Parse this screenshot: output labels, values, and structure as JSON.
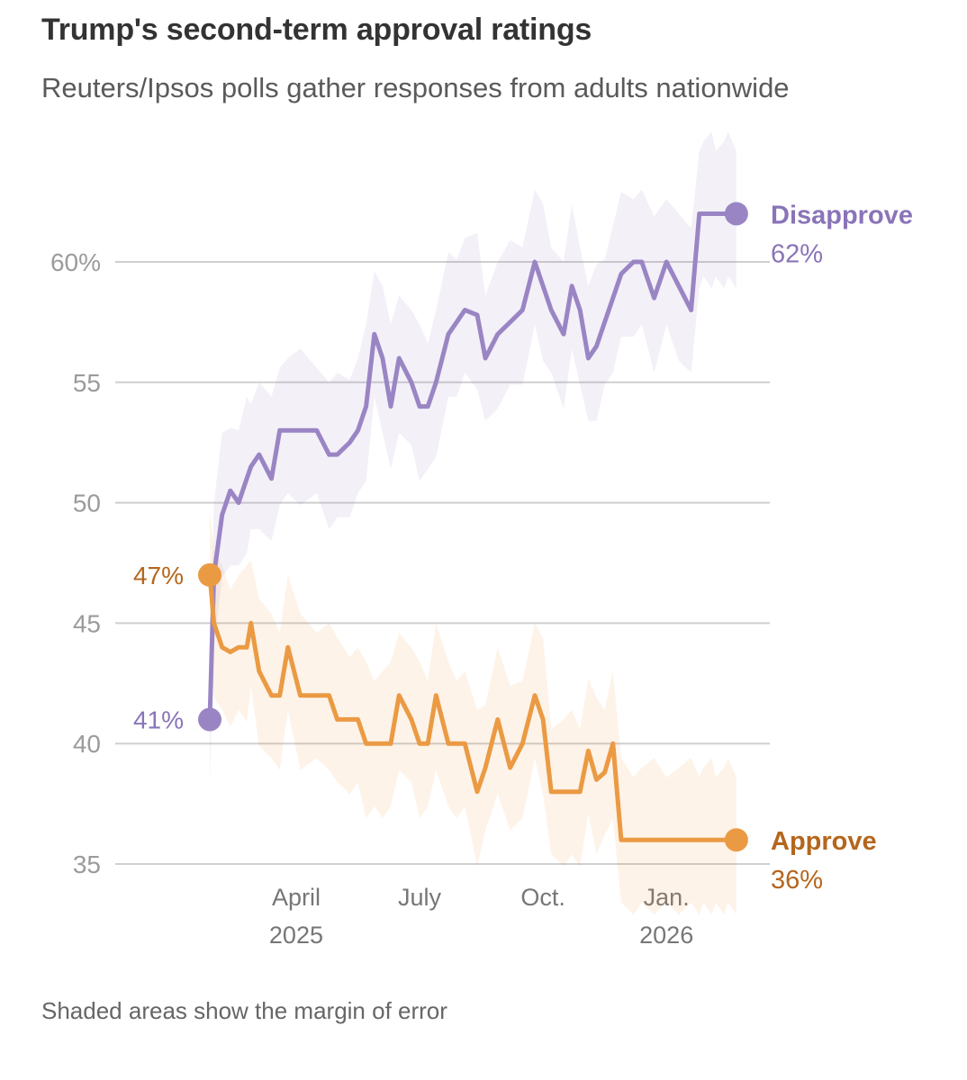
{
  "header": {
    "title": "Trump's second-term approval ratings",
    "subtitle": "Reuters/Ipsos polls gather responses from adults nationwide"
  },
  "footnote": "Shaded areas show the margin of error",
  "colors": {
    "approve": "#EB9A44",
    "approve_label": "#B5661C",
    "disapprove": "#9A85C4",
    "disapprove_label": "#8A74B8",
    "grid": "#cfcfcf"
  },
  "chart_data": {
    "type": "line",
    "title": "Trump's second-term approval ratings",
    "subtitle": "Reuters/Ipsos polls gather responses from adults nationwide",
    "xlabel": "",
    "ylabel": "",
    "ylim": [
      35,
      62
    ],
    "yticks": [
      {
        "value": 35,
        "label": "35"
      },
      {
        "value": 40,
        "label": "40"
      },
      {
        "value": 45,
        "label": "45"
      },
      {
        "value": 50,
        "label": "50"
      },
      {
        "value": 55,
        "label": "55"
      },
      {
        "value": 60,
        "label": "60%"
      }
    ],
    "xlim": [
      0,
      13
    ],
    "xticks": [
      {
        "value": 2.1,
        "label": "April",
        "sublabel": "2025"
      },
      {
        "value": 5.1,
        "label": "July",
        "sublabel": ""
      },
      {
        "value": 8.1,
        "label": "Oct.",
        "sublabel": ""
      },
      {
        "value": 11.1,
        "label": "Jan.",
        "sublabel": "2026"
      }
    ],
    "grid": true,
    "series": [
      {
        "name": "Disapprove",
        "end_label": "62%",
        "start_label": "41%",
        "x": [
          0,
          0.1,
          0.3,
          0.5,
          0.7,
          0.9,
          1.0,
          1.2,
          1.5,
          1.7,
          1.9,
          2.2,
          2.6,
          2.9,
          3.1,
          3.4,
          3.6,
          3.8,
          4.0,
          4.2,
          4.4,
          4.6,
          4.9,
          5.1,
          5.3,
          5.5,
          5.8,
          6.0,
          6.2,
          6.5,
          6.7,
          7.0,
          7.3,
          7.6,
          7.9,
          8.1,
          8.3,
          8.6,
          8.8,
          9.0,
          9.2,
          9.4,
          9.6,
          9.8,
          10.0,
          10.3,
          10.5,
          10.8,
          11.1,
          11.4,
          11.7,
          11.9,
          12.0,
          12.2,
          12.3,
          12.5,
          12.6,
          12.8
        ],
        "values": [
          41,
          47,
          49.5,
          50.5,
          50,
          51,
          51.5,
          52,
          51,
          53,
          53,
          53,
          53,
          52,
          52,
          52.5,
          53,
          54,
          57,
          56,
          54,
          56,
          55,
          54,
          54,
          55,
          57,
          57.5,
          58,
          57.8,
          56,
          57,
          57.5,
          58,
          60,
          59,
          58,
          57,
          59,
          58,
          56,
          56.5,
          57.5,
          58.5,
          59.5,
          60,
          60,
          58.5,
          60,
          59,
          58,
          62,
          62,
          62,
          62,
          62,
          62,
          62
        ]
      },
      {
        "name": "Approve",
        "end_label": "36%",
        "start_label": "47%",
        "x": [
          0,
          0.1,
          0.3,
          0.5,
          0.7,
          0.9,
          1.0,
          1.2,
          1.5,
          1.7,
          1.9,
          2.2,
          2.6,
          2.9,
          3.1,
          3.4,
          3.6,
          3.8,
          4.0,
          4.2,
          4.4,
          4.6,
          4.9,
          5.1,
          5.3,
          5.5,
          5.8,
          6.0,
          6.2,
          6.5,
          6.7,
          7.0,
          7.3,
          7.6,
          7.9,
          8.1,
          8.3,
          8.6,
          8.8,
          9.0,
          9.2,
          9.4,
          9.6,
          9.8,
          10.0,
          10.3,
          10.5,
          10.8,
          11.1,
          11.4,
          11.7,
          11.9,
          12.0,
          12.2,
          12.3,
          12.5,
          12.6,
          12.8
        ],
        "values": [
          47,
          45,
          44,
          43.8,
          44,
          44,
          45,
          43,
          42,
          42,
          44,
          42,
          42,
          42,
          41,
          41,
          41,
          40,
          40,
          40,
          40,
          42,
          41,
          40,
          40,
          42,
          40,
          40,
          40,
          38,
          39,
          41,
          39,
          40,
          42,
          41,
          38,
          38,
          38,
          38,
          39.7,
          38.5,
          38.8,
          40,
          36,
          36,
          36,
          36,
          36,
          36,
          36,
          36,
          36,
          36,
          36,
          36,
          36,
          36
        ]
      }
    ]
  }
}
